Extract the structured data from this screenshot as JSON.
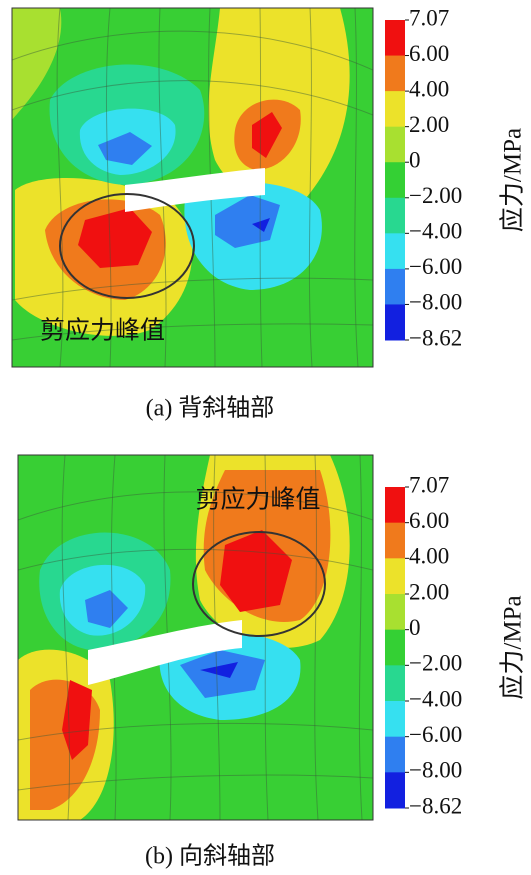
{
  "chart_data": [
    {
      "type": "contour",
      "annotation": "剪应力峰值",
      "caption": "(a) 背斜轴部",
      "colorbar": {
        "label": "应力/MPa",
        "ticks": [
          7.07,
          {
            "value": 6,
            "label": "6.00"
          },
          {
            "value": 4,
            "label": "4.00"
          },
          {
            "value": 2,
            "label": "2.00"
          },
          0,
          {
            "value": -2,
            "label": "−2.00"
          },
          {
            "value": -4,
            "label": "−4.00"
          },
          {
            "value": -6,
            "label": "−6.00"
          },
          {
            "value": -8,
            "label": "−8.00"
          },
          {
            "value": -8.62,
            "label": "−8.62"
          }
        ],
        "colors": [
          "#f01010",
          "#f07a1c",
          "#ece22a",
          "#a8e030",
          "#34d034",
          "#28d890",
          "#36e0f0",
          "#2f7ff0",
          "#1220e0"
        ]
      }
    },
    {
      "type": "contour",
      "annotation": "剪应力峰值",
      "caption": "(b) 向斜轴部",
      "colorbar": {
        "label": "应力/MPa",
        "ticks": [
          7.07,
          {
            "value": 6,
            "label": "6.00"
          },
          {
            "value": 4,
            "label": "4.00"
          },
          {
            "value": 2,
            "label": "2.00"
          },
          0,
          {
            "value": -2,
            "label": "−2.00"
          },
          {
            "value": -4,
            "label": "−4.00"
          },
          {
            "value": -6,
            "label": "−6.00"
          },
          {
            "value": -8,
            "label": "−8.00"
          },
          {
            "value": -8.62,
            "label": "−8.62"
          }
        ],
        "colors": [
          "#f01010",
          "#f07a1c",
          "#ece22a",
          "#a8e030",
          "#34d034",
          "#28d890",
          "#36e0f0",
          "#2f7ff0",
          "#1220e0"
        ]
      }
    }
  ]
}
